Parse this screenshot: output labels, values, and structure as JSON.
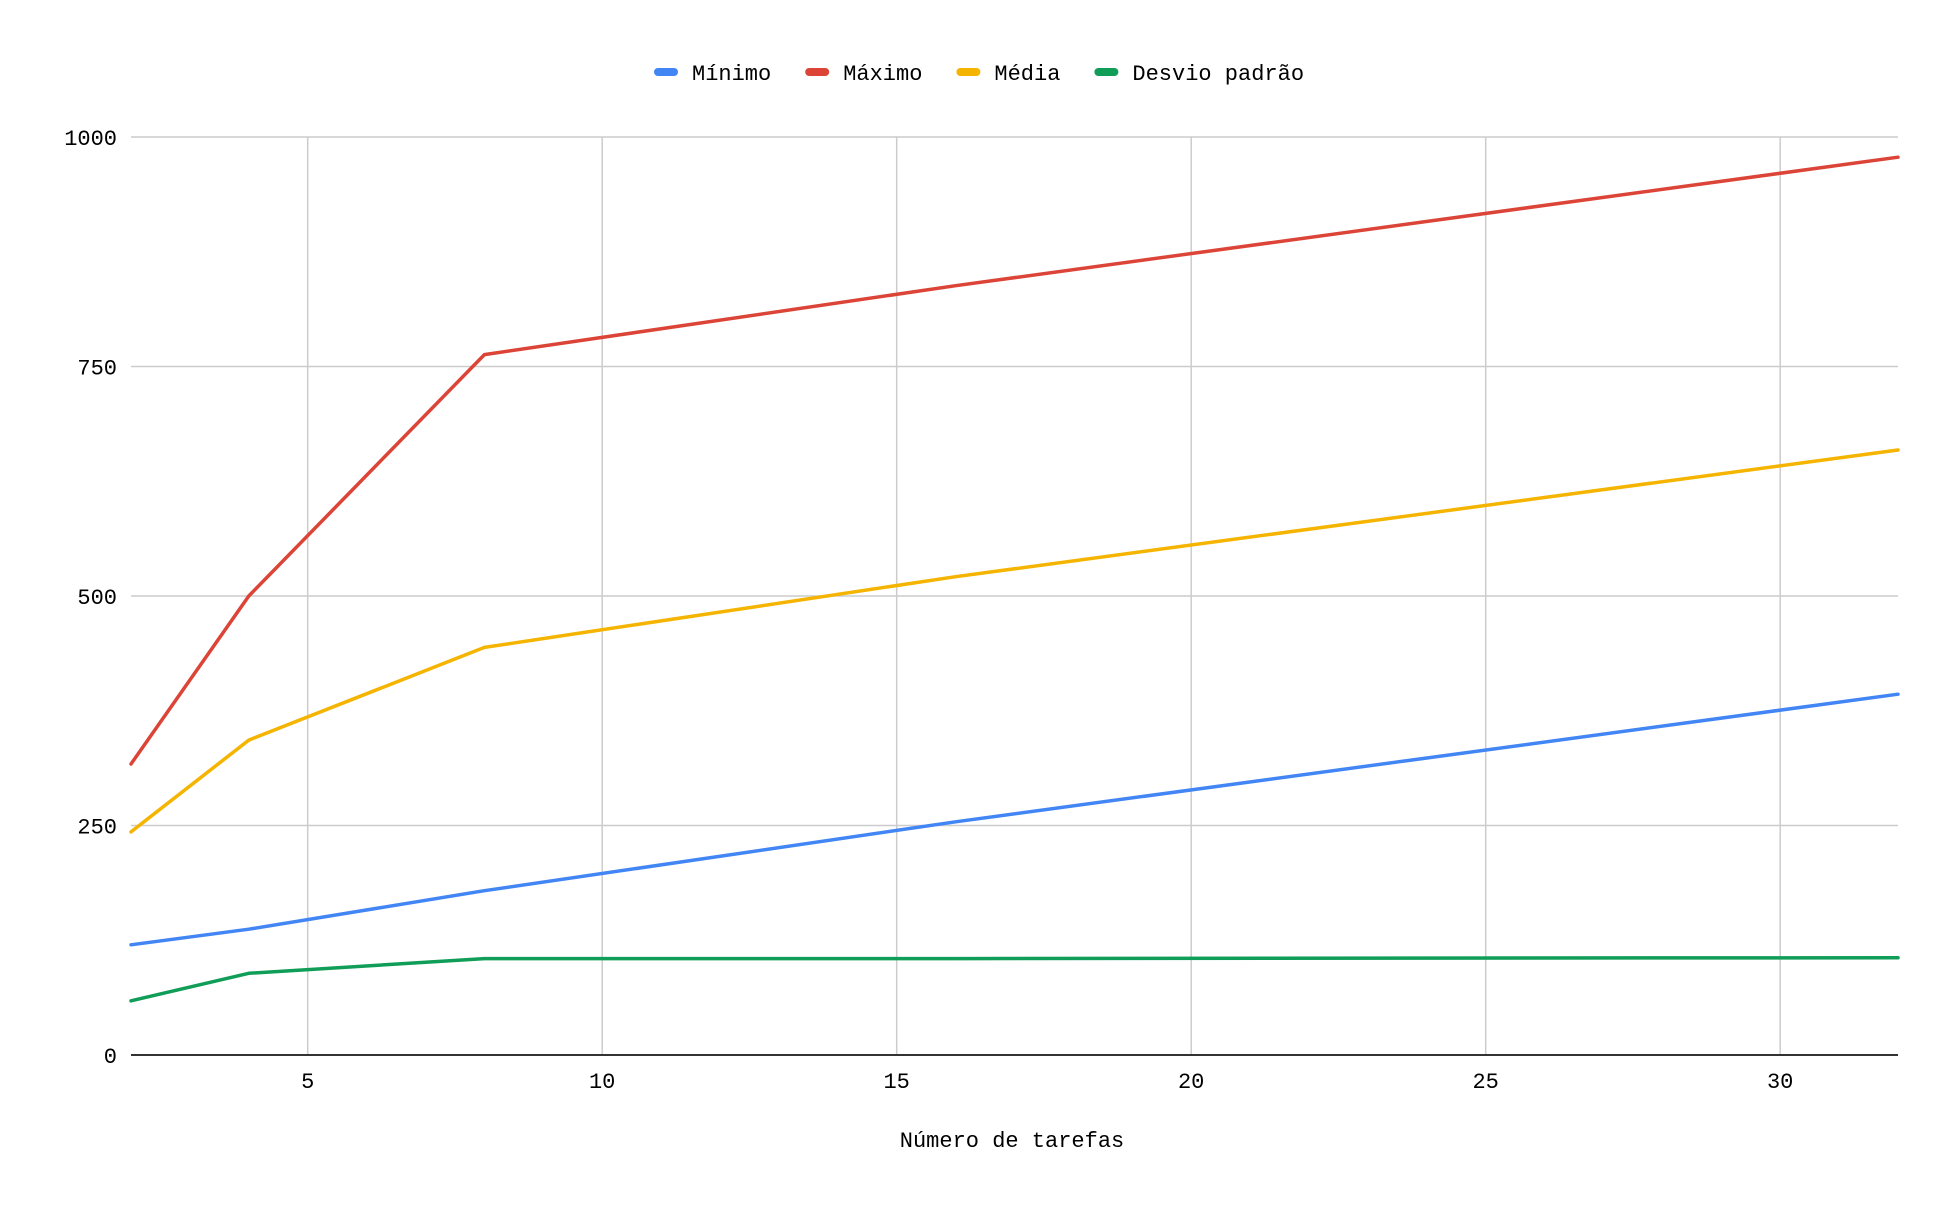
{
  "chart_data": {
    "type": "line",
    "title": "",
    "xlabel": "Número de tarefas",
    "ylabel": "",
    "x": [
      2,
      4,
      8,
      16,
      32
    ],
    "xlim": [
      2,
      32
    ],
    "ylim": [
      0,
      1000
    ],
    "x_ticks": [
      5,
      10,
      15,
      20,
      25,
      30
    ],
    "y_ticks": [
      0,
      250,
      500,
      750,
      1000
    ],
    "grid": true,
    "legend_position": "top",
    "series": [
      {
        "name": "Mínimo",
        "color": "#4285F4",
        "values": [
          120,
          137,
          179,
          254,
          393
        ]
      },
      {
        "name": "Máximo",
        "color": "#DB4437",
        "values": [
          317,
          500,
          763,
          838,
          978
        ]
      },
      {
        "name": "Média",
        "color": "#F4B400",
        "values": [
          243,
          343,
          444,
          521,
          659
        ]
      },
      {
        "name": "Desvio padrão",
        "color": "#0F9D58",
        "values": [
          59,
          89,
          105,
          105,
          106
        ]
      }
    ]
  }
}
